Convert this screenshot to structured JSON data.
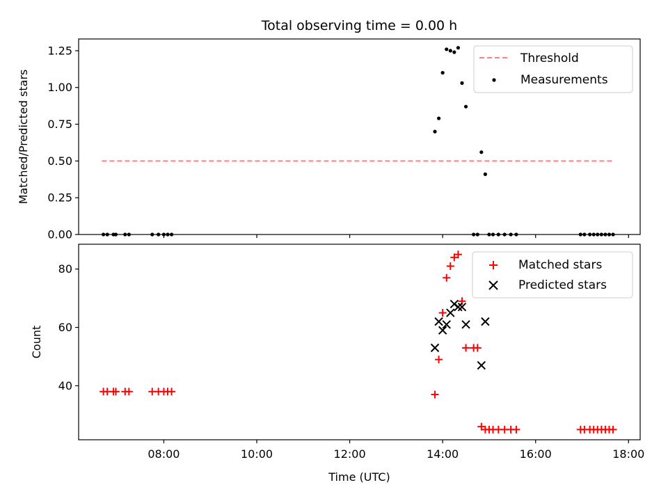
{
  "chart_data": [
    {
      "type": "scatter",
      "title": "Total observing time = 0.00 h",
      "xlabel": "",
      "ylabel": "Matched/Predicted stars",
      "x_unit": "hours UTC",
      "xlim": [
        "06:10",
        "18:15"
      ],
      "ylim": [
        0,
        1.33
      ],
      "yticks": [
        "0.00",
        "0.25",
        "0.50",
        "0.75",
        "1.00",
        "1.25"
      ],
      "legend_position": "top-right",
      "series": [
        {
          "name": "Threshold",
          "kind": "dashed-line",
          "color": "#ff7f7f",
          "points": [
            [
              "06:40",
              0.5
            ],
            [
              "17:40",
              0.5
            ]
          ]
        },
        {
          "name": "Measurements",
          "kind": "dots",
          "color": "#000000",
          "points": [
            [
              "06:42",
              0
            ],
            [
              "06:47",
              0
            ],
            [
              "06:55",
              0
            ],
            [
              "06:58",
              0
            ],
            [
              "07:10",
              0
            ],
            [
              "07:15",
              0
            ],
            [
              "07:45",
              0
            ],
            [
              "07:53",
              0
            ],
            [
              "08:00",
              0
            ],
            [
              "08:05",
              0
            ],
            [
              "08:10",
              0
            ],
            [
              "13:50",
              0.7
            ],
            [
              "13:55",
              0.79
            ],
            [
              "14:00",
              1.1
            ],
            [
              "14:05",
              1.26
            ],
            [
              "14:10",
              1.25
            ],
            [
              "14:15",
              1.24
            ],
            [
              "14:20",
              1.27
            ],
            [
              "14:25",
              1.03
            ],
            [
              "14:30",
              0.87
            ],
            [
              "14:40",
              0
            ],
            [
              "14:45",
              0
            ],
            [
              "14:50",
              0.56
            ],
            [
              "14:55",
              0.41
            ],
            [
              "15:00",
              0
            ],
            [
              "15:05",
              0
            ],
            [
              "15:12",
              0
            ],
            [
              "15:20",
              0
            ],
            [
              "15:28",
              0
            ],
            [
              "15:35",
              0
            ],
            [
              "16:58",
              0
            ],
            [
              "17:03",
              0
            ],
            [
              "17:10",
              0
            ],
            [
              "17:15",
              0
            ],
            [
              "17:20",
              0
            ],
            [
              "17:25",
              0
            ],
            [
              "17:30",
              0
            ],
            [
              "17:35",
              0
            ],
            [
              "17:40",
              0
            ]
          ]
        }
      ]
    },
    {
      "type": "scatter",
      "xlabel": "Time (UTC)",
      "ylabel": "Count",
      "x_unit": "hours UTC",
      "xlim": [
        "06:10",
        "18:15"
      ],
      "ylim": [
        21.5,
        88.5
      ],
      "xticks": [
        "08:00",
        "10:00",
        "12:00",
        "14:00",
        "16:00",
        "18:00"
      ],
      "yticks": [
        "40",
        "60",
        "80"
      ],
      "legend_position": "top-right",
      "series": [
        {
          "name": "Matched stars",
          "marker": "plus",
          "color": "#ff0000",
          "points": [
            [
              "06:42",
              38
            ],
            [
              "06:47",
              38
            ],
            [
              "06:55",
              38
            ],
            [
              "06:58",
              38
            ],
            [
              "07:10",
              38
            ],
            [
              "07:15",
              38
            ],
            [
              "07:45",
              38
            ],
            [
              "07:53",
              38
            ],
            [
              "08:00",
              38
            ],
            [
              "08:05",
              38
            ],
            [
              "08:10",
              38
            ],
            [
              "13:50",
              37
            ],
            [
              "13:55",
              49
            ],
            [
              "14:00",
              65
            ],
            [
              "14:05",
              77
            ],
            [
              "14:10",
              81
            ],
            [
              "14:15",
              84
            ],
            [
              "14:20",
              85
            ],
            [
              "14:25",
              69
            ],
            [
              "14:30",
              53
            ],
            [
              "14:40",
              53
            ],
            [
              "14:45",
              53
            ],
            [
              "14:50",
              26
            ],
            [
              "14:55",
              25
            ],
            [
              "15:00",
              25
            ],
            [
              "15:05",
              25
            ],
            [
              "15:12",
              25
            ],
            [
              "15:20",
              25
            ],
            [
              "15:28",
              25
            ],
            [
              "15:35",
              25
            ],
            [
              "16:58",
              25
            ],
            [
              "17:03",
              25
            ],
            [
              "17:10",
              25
            ],
            [
              "17:15",
              25
            ],
            [
              "17:20",
              25
            ],
            [
              "17:25",
              25
            ],
            [
              "17:30",
              25
            ],
            [
              "17:35",
              25
            ],
            [
              "17:40",
              25
            ]
          ]
        },
        {
          "name": "Predicted stars",
          "marker": "x",
          "color": "#000000",
          "points": [
            [
              "13:50",
              53
            ],
            [
              "13:55",
              62
            ],
            [
              "14:00",
              59
            ],
            [
              "14:05",
              61
            ],
            [
              "14:10",
              65
            ],
            [
              "14:15",
              68
            ],
            [
              "14:20",
              67
            ],
            [
              "14:25",
              67
            ],
            [
              "14:30",
              61
            ],
            [
              "14:50",
              47
            ],
            [
              "14:55",
              62
            ]
          ]
        }
      ]
    }
  ]
}
